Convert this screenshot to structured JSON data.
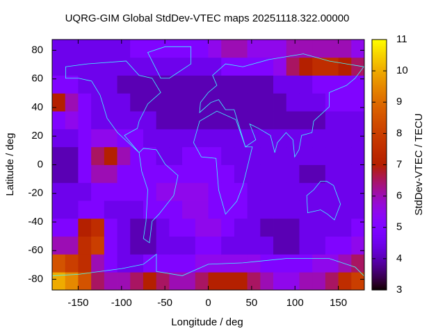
{
  "chart_data": {
    "type": "heatmap",
    "title": "UQRG-GIM Global StdDev-VTEC maps 20251118.322.00000",
    "xlabel": "Longitude / deg",
    "ylabel": "Latitude / deg",
    "zlabel": "StdDev-VTEC / TECU",
    "x": [
      -172.5,
      -157.5,
      -142.5,
      -127.5,
      -112.5,
      -97.5,
      -82.5,
      -67.5,
      -52.5,
      -37.5,
      -22.5,
      -7.5,
      7.5,
      22.5,
      37.5,
      52.5,
      67.5,
      82.5,
      97.5,
      112.5,
      127.5,
      142.5,
      157.5,
      172.5
    ],
    "y": [
      -81.25,
      -68.75,
      -56.25,
      -43.75,
      -31.25,
      -18.75,
      -6.25,
      6.25,
      18.75,
      31.25,
      43.75,
      56.25,
      68.75,
      81.25
    ],
    "z": [
      [
        10,
        9.5,
        8.5,
        6.5,
        6,
        6,
        6.5,
        7,
        6.5,
        6,
        6,
        6.5,
        7,
        7,
        7,
        6.5,
        6,
        5.5,
        5.5,
        6,
        6,
        6.5,
        7.5,
        8
      ],
      [
        8.5,
        8,
        7.5,
        6,
        5,
        4.5,
        4.5,
        5,
        5,
        5,
        5,
        5.5,
        5.5,
        5.5,
        5.5,
        5.5,
        5,
        5,
        5,
        5,
        5.5,
        5.5,
        6,
        6.5
      ],
      [
        6,
        6,
        7.5,
        8,
        5,
        4.5,
        4,
        4,
        4.5,
        4.5,
        4.5,
        5,
        5,
        4.5,
        4.5,
        4.5,
        4.5,
        4,
        4,
        4.5,
        4.5,
        5,
        5,
        5.5
      ],
      [
        5,
        5,
        7,
        7.5,
        5,
        4.5,
        4,
        4,
        4.5,
        5,
        5,
        5.5,
        5.5,
        5,
        4.5,
        4.5,
        4,
        4,
        4,
        4.5,
        4.5,
        4.5,
        4.5,
        5
      ],
      [
        4.5,
        4.5,
        5,
        5,
        4.5,
        4.5,
        4.5,
        5,
        5,
        5,
        5.5,
        5.5,
        5,
        5,
        5,
        4.5,
        4.5,
        4.5,
        4.5,
        4.5,
        4.5,
        4.5,
        4.5,
        4.5
      ],
      [
        4.5,
        4.5,
        4.5,
        5,
        5,
        5,
        5,
        5,
        5.5,
        5.5,
        5.5,
        5.5,
        5,
        5,
        5,
        4.5,
        4.5,
        4.5,
        4.5,
        4.5,
        4.5,
        4.5,
        4.5,
        4.5
      ],
      [
        4,
        4,
        5,
        6,
        6,
        5,
        5,
        5,
        5,
        5,
        5,
        5,
        5,
        5,
        4.5,
        4.5,
        4.5,
        4.5,
        4.5,
        4,
        4,
        4.5,
        4.5,
        4.5
      ],
      [
        4,
        4,
        5,
        6.5,
        7,
        6,
        5,
        5,
        4.5,
        4.5,
        5,
        5,
        5,
        4.5,
        4.5,
        4.5,
        4.5,
        4.5,
        4.5,
        4.5,
        4.5,
        4.5,
        4.5,
        4.5
      ],
      [
        4.5,
        4.5,
        5,
        5.5,
        5.5,
        5,
        5,
        4.5,
        4.5,
        4.5,
        4.5,
        4.5,
        4.5,
        4.5,
        4.5,
        4.5,
        4.5,
        4.5,
        4.5,
        4.5,
        4.5,
        4.5,
        4.5,
        4.5
      ],
      [
        5,
        5.5,
        5,
        4.5,
        4.5,
        4.5,
        4.5,
        4.5,
        4,
        4,
        4,
        4,
        4,
        4,
        4,
        4,
        4,
        4,
        4,
        4,
        4,
        4.5,
        4.5,
        4.5
      ],
      [
        7,
        6,
        5,
        4.5,
        4.5,
        4.5,
        4,
        4,
        4,
        4,
        4,
        4,
        4,
        4,
        4,
        4,
        4,
        4,
        4.5,
        4.5,
        4.5,
        5,
        5,
        5
      ],
      [
        5,
        5,
        4.5,
        4.5,
        4.5,
        4,
        4,
        4,
        4,
        4,
        4,
        4,
        4,
        4,
        4,
        4,
        4,
        4.5,
        4.5,
        4.5,
        5,
        5,
        5,
        5
      ],
      [
        4.5,
        4.5,
        4.5,
        4.5,
        4.5,
        4.5,
        4.5,
        4.5,
        4.5,
        4.5,
        4.5,
        4.5,
        4.5,
        5,
        5,
        5,
        5,
        5.5,
        6.5,
        7,
        7.5,
        7.5,
        7,
        6.5
      ],
      [
        4.5,
        4.5,
        4.5,
        4.5,
        4.5,
        4.5,
        5,
        5,
        5,
        5,
        5,
        5,
        5.5,
        6,
        6,
        5.5,
        5.5,
        5.5,
        6,
        6,
        6,
        6,
        6,
        5.5
      ]
    ],
    "xlim": [
      -180,
      180
    ],
    "ylim": [
      -87.5,
      87.5
    ],
    "zlim": [
      3,
      11
    ],
    "xticks": [
      -150,
      -100,
      -50,
      0,
      50,
      100,
      150
    ],
    "yticks": [
      -80,
      -60,
      -40,
      -20,
      0,
      20,
      40,
      60,
      80
    ],
    "zticks": [
      3,
      4,
      5,
      6,
      7,
      8,
      9,
      10,
      11
    ]
  }
}
